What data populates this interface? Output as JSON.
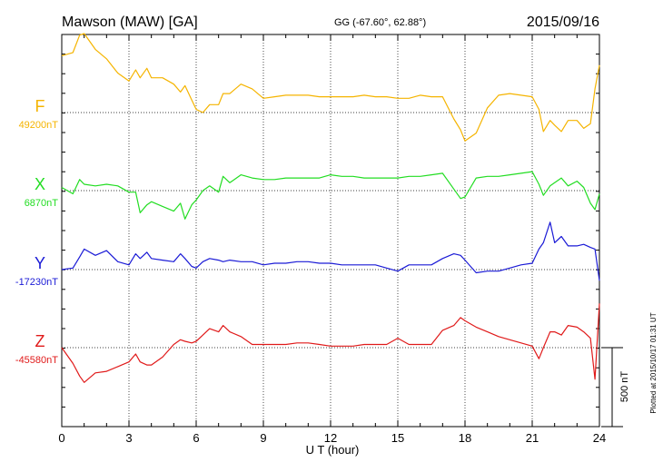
{
  "header": {
    "station": "Mawson (MAW)  [GA]",
    "coords": "GG (-67.60°,  62.88°)",
    "date": "2015/09/16"
  },
  "side_note": "Plotted at 2015/10/17 01:31  UT",
  "scale_bar": {
    "label": "500 nT",
    "value_nT": 500
  },
  "chart_data": {
    "type": "line",
    "title": "Mawson (MAW)  [GA]",
    "xlabel": "U T (hour)",
    "xlim": [
      0,
      24
    ],
    "xticks": [
      0,
      3,
      6,
      9,
      12,
      15,
      18,
      21,
      24
    ],
    "x_tick_labels": [
      "0",
      "3",
      "6",
      "9",
      "12",
      "15",
      "18",
      "21",
      "24"
    ],
    "grid": true,
    "x": [
      0,
      0.5,
      0.8,
      1,
      1.5,
      2,
      2.5,
      3,
      3.3,
      3.5,
      3.8,
      4,
      4.5,
      5,
      5.3,
      5.5,
      5.8,
      6,
      6.3,
      6.6,
      7,
      7.2,
      7.5,
      8,
      8.5,
      9,
      9.5,
      10,
      10.5,
      11,
      11.5,
      12,
      12.5,
      13,
      13.5,
      14,
      14.5,
      15,
      15.5,
      16,
      16.5,
      17,
      17.5,
      17.8,
      18,
      18.5,
      19,
      19.5,
      20,
      20.5,
      21,
      21.3,
      21.5,
      21.8,
      22,
      22.3,
      22.6,
      23,
      23.3,
      23.6,
      23.8,
      24
    ],
    "series": [
      {
        "name": "F",
        "baseline": "49200nT",
        "color": "#f5b400",
        "values": [
          49560,
          49580,
          49690,
          49700,
          49600,
          49540,
          49450,
          49400,
          49470,
          49420,
          49480,
          49420,
          49420,
          49380,
          49330,
          49370,
          49280,
          49220,
          49200,
          49250,
          49250,
          49320,
          49320,
          49380,
          49350,
          49290,
          49300,
          49310,
          49310,
          49310,
          49300,
          49300,
          49300,
          49300,
          49310,
          49300,
          49300,
          49290,
          49290,
          49310,
          49300,
          49300,
          49160,
          49090,
          49020,
          49070,
          49230,
          49310,
          49320,
          49310,
          49300,
          49220,
          49080,
          49150,
          49120,
          49080,
          49150,
          49150,
          49100,
          49130,
          49350,
          49500
        ]
      },
      {
        "name": "X",
        "baseline": "6870nT",
        "color": "#22dd22",
        "values": [
          6890,
          6850,
          6940,
          6910,
          6900,
          6910,
          6900,
          6860,
          6860,
          6730,
          6780,
          6800,
          6770,
          6740,
          6790,
          6690,
          6780,
          6810,
          6870,
          6900,
          6860,
          6960,
          6920,
          6970,
          6950,
          6940,
          6940,
          6950,
          6950,
          6950,
          6950,
          6970,
          6960,
          6960,
          6950,
          6950,
          6950,
          6950,
          6960,
          6960,
          6970,
          6980,
          6880,
          6820,
          6830,
          6950,
          6960,
          6960,
          6970,
          6980,
          6990,
          6910,
          6840,
          6900,
          6920,
          6950,
          6900,
          6930,
          6890,
          6790,
          6750,
          6850
        ]
      },
      {
        "name": "Y",
        "baseline": "-17230nT",
        "color": "#1a1ad6",
        "values": [
          -17230,
          -17220,
          -17150,
          -17100,
          -17140,
          -17110,
          -17180,
          -17200,
          -17130,
          -17160,
          -17120,
          -17160,
          -17170,
          -17180,
          -17130,
          -17160,
          -17210,
          -17220,
          -17180,
          -17160,
          -17170,
          -17180,
          -17170,
          -17180,
          -17180,
          -17200,
          -17190,
          -17190,
          -17180,
          -17180,
          -17190,
          -17190,
          -17200,
          -17200,
          -17200,
          -17200,
          -17220,
          -17240,
          -17200,
          -17200,
          -17200,
          -17160,
          -17130,
          -17140,
          -17170,
          -17250,
          -17240,
          -17240,
          -17220,
          -17200,
          -17190,
          -17100,
          -17060,
          -16930,
          -17060,
          -17020,
          -17080,
          -17080,
          -17070,
          -17090,
          -17100,
          -17300
        ]
      },
      {
        "name": "Z",
        "baseline": "-45580nT",
        "color": "#e01a1a",
        "values": [
          -45580,
          -45680,
          -45760,
          -45800,
          -45740,
          -45730,
          -45700,
          -45670,
          -45620,
          -45670,
          -45690,
          -45690,
          -45640,
          -45560,
          -45530,
          -45540,
          -45550,
          -45540,
          -45500,
          -45460,
          -45480,
          -45440,
          -45480,
          -45510,
          -45560,
          -45560,
          -45560,
          -45560,
          -45550,
          -45550,
          -45560,
          -45570,
          -45570,
          -45570,
          -45560,
          -45560,
          -45560,
          -45520,
          -45560,
          -45560,
          -45560,
          -45470,
          -45440,
          -45390,
          -45410,
          -45450,
          -45480,
          -45510,
          -45530,
          -45550,
          -45570,
          -45650,
          -45580,
          -45480,
          -45480,
          -45500,
          -45440,
          -45450,
          -45480,
          -45520,
          -45780,
          -45300
        ]
      }
    ]
  }
}
